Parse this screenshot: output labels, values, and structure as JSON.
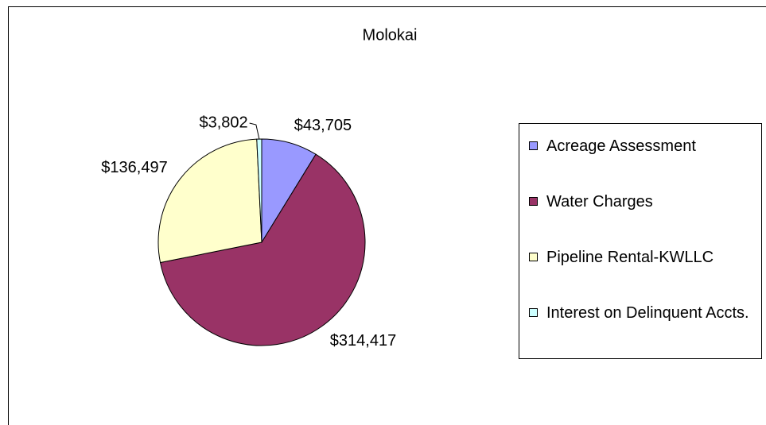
{
  "chart_data": {
    "type": "pie",
    "title": "Molokai",
    "categories": [
      "Acreage Assessment",
      "Water Charges",
      "Pipeline Rental-KWLLC",
      "Interest on Delinquent Accts."
    ],
    "values": [
      43705,
      314417,
      136497,
      3802
    ],
    "value_labels": [
      "$43,705",
      "$314,417",
      "$136,497",
      "$3,802"
    ],
    "colors": [
      "#9999ff",
      "#993366",
      "#ffffcc",
      "#ccffff"
    ],
    "legend": "right"
  }
}
